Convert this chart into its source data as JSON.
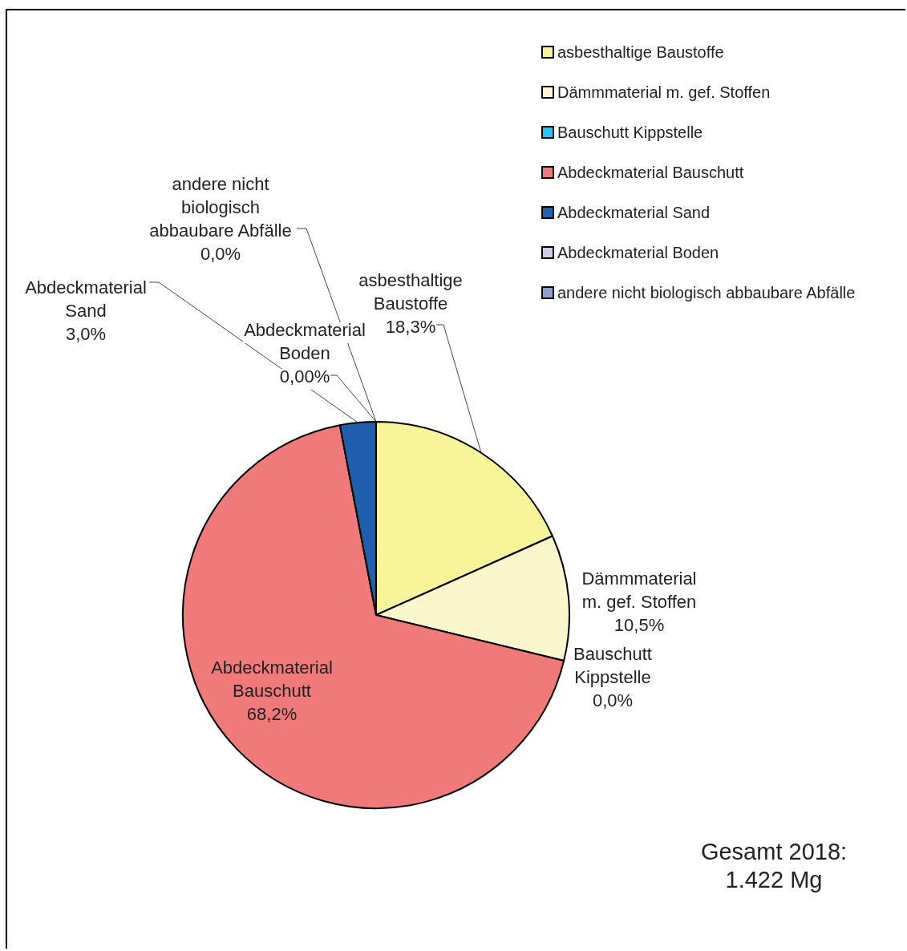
{
  "chart_data": {
    "type": "pie",
    "categories": [
      "asbesthaltige Baustoffe",
      "Dämmmaterial m. gef. Stoffen",
      "Bauschutt Kippstelle",
      "Abdeckmaterial Bauschutt",
      "Abdeckmaterial Sand",
      "Abdeckmaterial Boden",
      "andere nicht biologisch abbaubare Abfälle"
    ],
    "values": [
      18.3,
      10.5,
      0.0,
      68.2,
      3.0,
      0.0,
      0.0
    ],
    "value_labels": [
      "18,3%",
      "10,5%",
      "0,0%",
      "68,2%",
      "3,0%",
      "0,00%",
      "0,0%"
    ],
    "colors": [
      "#f7f49a",
      "#faf7cc",
      "#29c4ef",
      "#f07a7a",
      "#1f5fad",
      "#d0cce8",
      "#8aa2cc"
    ],
    "legend": "top right",
    "annotations": [
      "Gesamt 2018:\n1.422 Mg"
    ]
  }
}
